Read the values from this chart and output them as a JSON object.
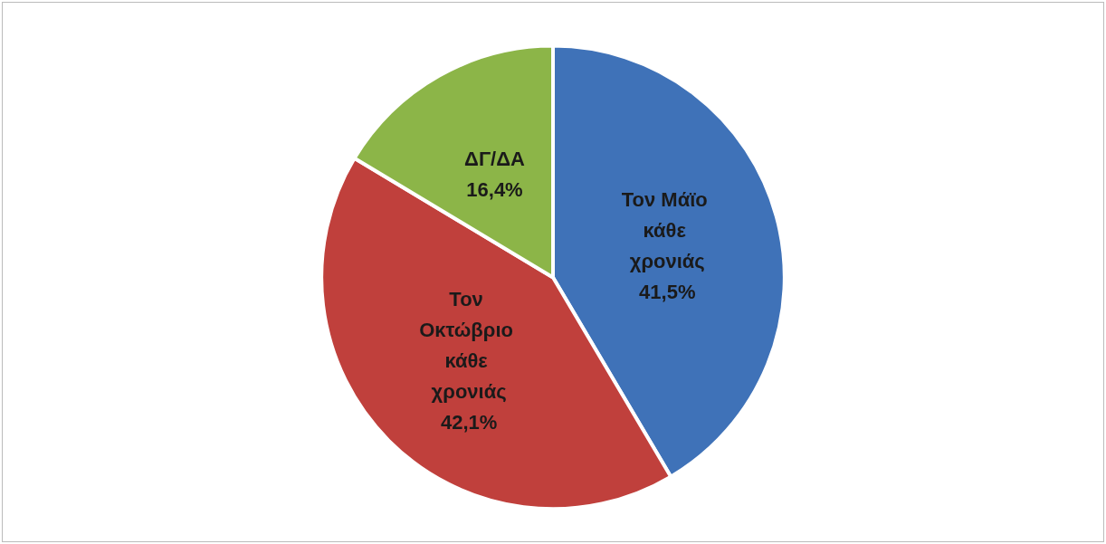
{
  "chart_data": {
    "type": "pie",
    "categories": [
      "Τον Μάϊο κάθε χρονιάς",
      "Τον Οκτώβριο κάθε χρονιάς",
      "ΔΓ/ΔΑ"
    ],
    "values": [
      41.5,
      42.1,
      16.4
    ],
    "value_labels": [
      "41,5%",
      "42,1%",
      "16,4%"
    ],
    "colors": [
      "#3f72b8",
      "#c0403c",
      "#8cb548"
    ],
    "legend": false
  }
}
